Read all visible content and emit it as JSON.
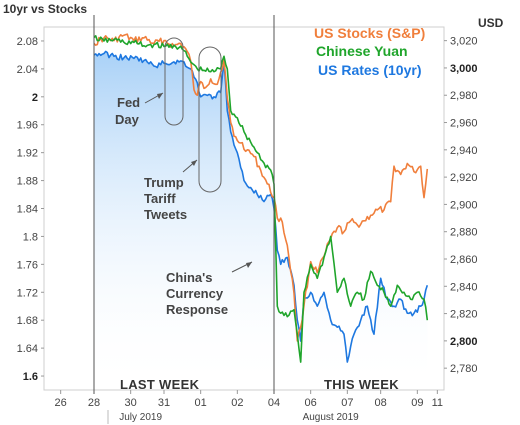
{
  "chart_data": {
    "type": "line",
    "title": "10yr vs Stocks",
    "y_left": {
      "label": "10yr vs Stocks",
      "range": [
        1.58,
        2.1
      ],
      "ticks": [
        {
          "value": 2.08,
          "label": "2.08"
        },
        {
          "value": 2.04,
          "label": "2.04"
        },
        {
          "value": 2.0,
          "label": "2",
          "bold": true
        },
        {
          "value": 1.96,
          "label": "1.96"
        },
        {
          "value": 1.92,
          "label": "1.92"
        },
        {
          "value": 1.88,
          "label": "1.88"
        },
        {
          "value": 1.84,
          "label": "1.84"
        },
        {
          "value": 1.8,
          "label": "1.8"
        },
        {
          "value": 1.76,
          "label": "1.76"
        },
        {
          "value": 1.72,
          "label": "1.72"
        },
        {
          "value": 1.68,
          "label": "1.68"
        },
        {
          "value": 1.64,
          "label": "1.64"
        },
        {
          "value": 1.6,
          "label": "1.6",
          "bold": true
        }
      ]
    },
    "y_right": {
      "label": "USD",
      "range": [
        2764,
        3030
      ],
      "ticks": [
        {
          "value": 3020,
          "label": "3,020"
        },
        {
          "value": 3000,
          "label": "3,000",
          "bold": true
        },
        {
          "value": 2980,
          "label": "2,980"
        },
        {
          "value": 2960,
          "label": "2,960"
        },
        {
          "value": 2940,
          "label": "2,940"
        },
        {
          "value": 2920,
          "label": "2,920"
        },
        {
          "value": 2900,
          "label": "2,900"
        },
        {
          "value": 2880,
          "label": "2,880"
        },
        {
          "value": 2860,
          "label": "2,860"
        },
        {
          "value": 2840,
          "label": "2,840"
        },
        {
          "value": 2820,
          "label": "2,820"
        },
        {
          "value": 2800,
          "label": "2,800",
          "bold": true
        },
        {
          "value": 2780,
          "label": "2,780"
        }
      ]
    },
    "x_axis": {
      "range": [
        25.5,
        37.5
      ],
      "ticks": [
        {
          "x": 26,
          "label": "26"
        },
        {
          "x": 27,
          "label": "28"
        },
        {
          "x": 28.1,
          "label": "30"
        },
        {
          "x": 29.1,
          "label": "31"
        },
        {
          "x": 30.2,
          "label": "01"
        },
        {
          "x": 31.3,
          "label": "02"
        },
        {
          "x": 32.4,
          "label": "04"
        },
        {
          "x": 33.5,
          "label": "06"
        },
        {
          "x": 34.6,
          "label": "07"
        },
        {
          "x": 35.6,
          "label": "08"
        },
        {
          "x": 36.7,
          "label": "09"
        },
        {
          "x": 37.3,
          "label": "11"
        }
      ],
      "months": [
        {
          "x": 28.4,
          "label": "July 2019"
        },
        {
          "x": 34.1,
          "label": "August 2019"
        }
      ],
      "dividers": [
        27,
        32.4
      ]
    },
    "series": [
      {
        "name": "US Stocks (S&P)",
        "color": "#f07f3c",
        "axis": "right",
        "points": [
          [
            27.0,
            3018
          ],
          [
            27.3,
            3022
          ],
          [
            27.6,
            3020
          ],
          [
            27.9,
            3024
          ],
          [
            28.2,
            3020
          ],
          [
            28.5,
            3022
          ],
          [
            28.8,
            3018
          ],
          [
            29.1,
            3020
          ],
          [
            29.4,
            3016
          ],
          [
            29.6,
            3018
          ],
          [
            29.8,
            3012
          ],
          [
            29.9,
            3005
          ],
          [
            30.0,
            2984
          ],
          [
            30.1,
            2980
          ],
          [
            30.2,
            2990
          ],
          [
            30.3,
            2985
          ],
          [
            30.5,
            2992
          ],
          [
            30.7,
            2988
          ],
          [
            30.9,
            3006
          ],
          [
            31.0,
            2978
          ],
          [
            31.1,
            2960
          ],
          [
            31.2,
            2950
          ],
          [
            31.4,
            2945
          ],
          [
            31.6,
            2940
          ],
          [
            31.8,
            2935
          ],
          [
            32.0,
            2925
          ],
          [
            32.2,
            2915
          ],
          [
            32.4,
            2905
          ],
          [
            32.5,
            2890
          ],
          [
            32.6,
            2890
          ],
          [
            32.8,
            2870
          ],
          [
            33.0,
            2835
          ],
          [
            33.1,
            2800
          ],
          [
            33.2,
            2810
          ],
          [
            33.3,
            2826
          ],
          [
            33.5,
            2858
          ],
          [
            33.7,
            2850
          ],
          [
            33.9,
            2862
          ],
          [
            34.1,
            2875
          ],
          [
            34.3,
            2883
          ],
          [
            34.5,
            2880
          ],
          [
            34.7,
            2888
          ],
          [
            34.9,
            2885
          ],
          [
            35.1,
            2888
          ],
          [
            35.3,
            2892
          ],
          [
            35.5,
            2896
          ],
          [
            35.7,
            2896
          ],
          [
            35.9,
            2902
          ],
          [
            36.0,
            2928
          ],
          [
            36.2,
            2922
          ],
          [
            36.4,
            2930
          ],
          [
            36.6,
            2924
          ],
          [
            36.8,
            2928
          ],
          [
            36.9,
            2905
          ],
          [
            37.0,
            2926
          ]
        ]
      },
      {
        "name": "Chinese Yuan",
        "color": "#1fa52b",
        "axis": "left",
        "points": [
          [
            27.0,
            2.085
          ],
          [
            27.3,
            2.08
          ],
          [
            27.6,
            2.082
          ],
          [
            27.9,
            2.078
          ],
          [
            28.2,
            2.078
          ],
          [
            28.5,
            2.073
          ],
          [
            28.8,
            2.075
          ],
          [
            29.1,
            2.072
          ],
          [
            29.4,
            2.074
          ],
          [
            29.7,
            2.066
          ],
          [
            29.9,
            2.05
          ],
          [
            30.1,
            2.04
          ],
          [
            30.3,
            2.038
          ],
          [
            30.5,
            2.036
          ],
          [
            30.8,
            2.04
          ],
          [
            30.9,
            2.058
          ],
          [
            31.0,
            2.04
          ],
          [
            31.1,
            1.98
          ],
          [
            31.3,
            1.97
          ],
          [
            31.5,
            1.95
          ],
          [
            31.7,
            1.935
          ],
          [
            31.9,
            1.92
          ],
          [
            32.1,
            1.905
          ],
          [
            32.3,
            1.895
          ],
          [
            32.4,
            1.875
          ],
          [
            32.5,
            1.7
          ],
          [
            32.6,
            1.69
          ],
          [
            32.8,
            1.685
          ],
          [
            33.0,
            1.695
          ],
          [
            33.1,
            1.66
          ],
          [
            33.2,
            1.62
          ],
          [
            33.3,
            1.72
          ],
          [
            33.5,
            1.76
          ],
          [
            33.7,
            1.74
          ],
          [
            33.9,
            1.77
          ],
          [
            34.1,
            1.8
          ],
          [
            34.3,
            1.72
          ],
          [
            34.5,
            1.74
          ],
          [
            34.7,
            1.7
          ],
          [
            34.9,
            1.72
          ],
          [
            35.1,
            1.71
          ],
          [
            35.3,
            1.75
          ],
          [
            35.5,
            1.73
          ],
          [
            35.7,
            1.72
          ],
          [
            35.9,
            1.7
          ],
          [
            36.1,
            1.73
          ],
          [
            36.3,
            1.72
          ],
          [
            36.5,
            1.71
          ],
          [
            36.7,
            1.72
          ],
          [
            36.9,
            1.71
          ],
          [
            37.0,
            1.68
          ]
        ]
      },
      {
        "name": "US Rates (10yr)",
        "color": "#1e78e0",
        "axis": "left",
        "points": [
          [
            27.0,
            2.06
          ],
          [
            27.3,
            2.062
          ],
          [
            27.6,
            2.058
          ],
          [
            27.9,
            2.056
          ],
          [
            28.2,
            2.055
          ],
          [
            28.5,
            2.052
          ],
          [
            28.8,
            2.044
          ],
          [
            29.1,
            2.048
          ],
          [
            29.4,
            2.05
          ],
          [
            29.7,
            2.05
          ],
          [
            29.9,
            2.04
          ],
          [
            30.1,
            2.02
          ],
          [
            30.2,
            2.0
          ],
          [
            30.4,
            2.002
          ],
          [
            30.6,
            2.0
          ],
          [
            30.8,
            2.006
          ],
          [
            30.9,
            2.05
          ],
          [
            31.0,
            1.98
          ],
          [
            31.1,
            1.95
          ],
          [
            31.3,
            1.92
          ],
          [
            31.5,
            1.88
          ],
          [
            31.7,
            1.87
          ],
          [
            31.9,
            1.86
          ],
          [
            32.1,
            1.85
          ],
          [
            32.3,
            1.86
          ],
          [
            32.4,
            1.84
          ],
          [
            32.5,
            1.78
          ],
          [
            32.6,
            1.76
          ],
          [
            32.8,
            1.77
          ],
          [
            33.0,
            1.73
          ],
          [
            33.1,
            1.68
          ],
          [
            33.2,
            1.65
          ],
          [
            33.3,
            1.71
          ],
          [
            33.5,
            1.72
          ],
          [
            33.7,
            1.7
          ],
          [
            33.9,
            1.72
          ],
          [
            34.1,
            1.68
          ],
          [
            34.3,
            1.67
          ],
          [
            34.5,
            1.66
          ],
          [
            34.6,
            1.62
          ],
          [
            34.8,
            1.66
          ],
          [
            35.0,
            1.68
          ],
          [
            35.2,
            1.7
          ],
          [
            35.4,
            1.66
          ],
          [
            35.6,
            1.74
          ],
          [
            35.8,
            1.71
          ],
          [
            36.0,
            1.7
          ],
          [
            36.2,
            1.71
          ],
          [
            36.4,
            1.69
          ],
          [
            36.6,
            1.69
          ],
          [
            36.8,
            1.7
          ],
          [
            36.9,
            1.71
          ],
          [
            37.0,
            1.73
          ]
        ]
      }
    ],
    "annotations": [
      {
        "lines": [
          "Fed",
          "Day"
        ]
      },
      {
        "lines": [
          "Trump",
          "Tariff",
          "Tweets"
        ]
      },
      {
        "lines": [
          "China's",
          "Currency",
          "Response"
        ]
      }
    ],
    "week_labels": [
      "LAST WEEK",
      "THIS WEEK"
    ],
    "legend_position": "top-right",
    "grid": false
  }
}
